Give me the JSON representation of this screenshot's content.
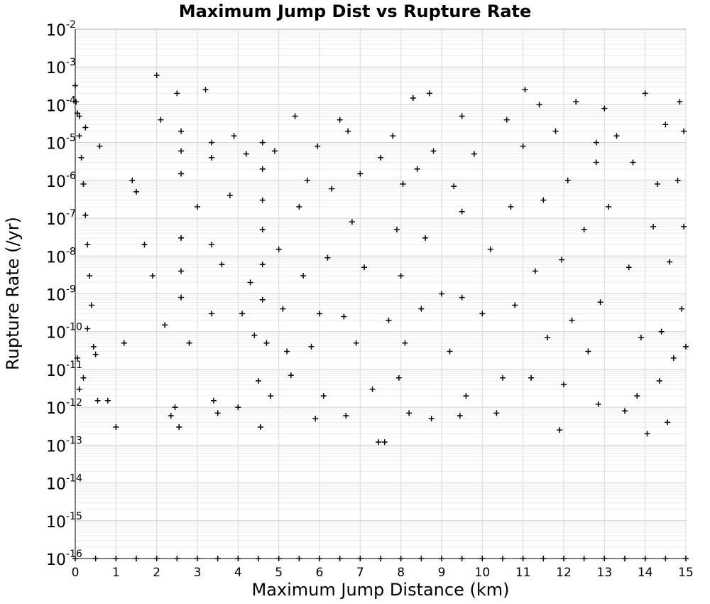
{
  "chart_data": {
    "type": "scatter",
    "title": "Maximum Jump Dist vs Rupture Rate",
    "xlabel": "Maximum Jump Distance (km)",
    "ylabel": "Rupture Rate (/yr)",
    "xlim": [
      0,
      15
    ],
    "ylim": [
      1e-16,
      0.01
    ],
    "yscale": "log",
    "grid": true,
    "marker": "+",
    "marker_color": "#000000",
    "x_ticks": [
      "0",
      "1",
      "2",
      "3",
      "4",
      "5",
      "6",
      "7",
      "8",
      "9",
      "10",
      "11",
      "12",
      "13",
      "14",
      "15"
    ],
    "y_ticks": [
      {
        "base": "10",
        "exp": "-2"
      },
      {
        "base": "10",
        "exp": "-3"
      },
      {
        "base": "10",
        "exp": "-4"
      },
      {
        "base": "10",
        "exp": "-5"
      },
      {
        "base": "10",
        "exp": "-6"
      },
      {
        "base": "10",
        "exp": "-7"
      },
      {
        "base": "10",
        "exp": "-8"
      },
      {
        "base": "10",
        "exp": "-9"
      },
      {
        "base": "10",
        "exp": "-10"
      },
      {
        "base": "10",
        "exp": "-11"
      },
      {
        "base": "10",
        "exp": "-12"
      },
      {
        "base": "10",
        "exp": "-13"
      },
      {
        "base": "10",
        "exp": "-14"
      },
      {
        "base": "10",
        "exp": "-15"
      },
      {
        "base": "10",
        "exp": "-16"
      }
    ],
    "series": [
      {
        "points": [
          [
            0.0,
            0.00032
          ],
          [
            0.02,
            0.00012
          ],
          [
            0.05,
            6e-05
          ],
          [
            0.1,
            1.5e-05
          ],
          [
            0.15,
            4e-06
          ],
          [
            0.2,
            8e-07
          ],
          [
            0.25,
            1.2e-07
          ],
          [
            0.3,
            2e-08
          ],
          [
            0.35,
            3e-09
          ],
          [
            0.4,
            5e-10
          ],
          [
            0.05,
            2e-11
          ],
          [
            0.1,
            3e-12
          ],
          [
            0.3,
            1.2e-10
          ],
          [
            0.45,
            4e-11
          ],
          [
            0.5,
            2.5e-11
          ],
          [
            0.2,
            6e-12
          ],
          [
            0.55,
            1.5e-12
          ],
          [
            0.1,
            5e-05
          ],
          [
            0.25,
            2.5e-05
          ],
          [
            0.6,
            8e-06
          ],
          [
            0.8,
            1.5e-12
          ],
          [
            1.0,
            3e-13
          ],
          [
            1.2,
            5e-11
          ],
          [
            1.4,
            1e-06
          ],
          [
            1.5,
            5e-07
          ],
          [
            1.7,
            2e-08
          ],
          [
            1.9,
            3e-09
          ],
          [
            2.0,
            0.0006
          ],
          [
            2.1,
            4e-05
          ],
          [
            2.2,
            1.5e-10
          ],
          [
            2.35,
            6e-13
          ],
          [
            2.45,
            1e-12
          ],
          [
            2.5,
            0.0002
          ],
          [
            2.55,
            3e-13
          ],
          [
            2.6,
            2e-05
          ],
          [
            2.6,
            6e-06
          ],
          [
            2.6,
            1.5e-06
          ],
          [
            2.6,
            3e-08
          ],
          [
            2.6,
            4e-09
          ],
          [
            2.6,
            8e-10
          ],
          [
            2.8,
            5e-11
          ],
          [
            3.0,
            2e-07
          ],
          [
            3.2,
            0.00025
          ],
          [
            3.35,
            1e-05
          ],
          [
            3.35,
            4e-06
          ],
          [
            3.35,
            2e-08
          ],
          [
            3.35,
            3e-10
          ],
          [
            3.4,
            1.5e-12
          ],
          [
            3.5,
            7e-13
          ],
          [
            3.6,
            6e-09
          ],
          [
            3.8,
            4e-07
          ],
          [
            3.9,
            1.5e-05
          ],
          [
            4.0,
            1e-12
          ],
          [
            4.1,
            3e-10
          ],
          [
            4.2,
            5e-06
          ],
          [
            4.3,
            2e-09
          ],
          [
            4.4,
            8e-11
          ],
          [
            4.5,
            5e-12
          ],
          [
            4.55,
            3e-13
          ],
          [
            4.6,
            1e-05
          ],
          [
            4.6,
            2e-06
          ],
          [
            4.6,
            3e-07
          ],
          [
            4.6,
            5e-08
          ],
          [
            4.6,
            6e-09
          ],
          [
            4.6,
            7e-10
          ],
          [
            4.7,
            5e-11
          ],
          [
            4.8,
            2e-12
          ],
          [
            4.9,
            6e-06
          ],
          [
            5.0,
            1.5e-08
          ],
          [
            5.1,
            4e-10
          ],
          [
            5.2,
            3e-11
          ],
          [
            5.3,
            7e-12
          ],
          [
            5.4,
            5e-05
          ],
          [
            5.5,
            2e-07
          ],
          [
            5.6,
            3e-09
          ],
          [
            5.7,
            1e-06
          ],
          [
            5.8,
            4e-11
          ],
          [
            5.9,
            5e-13
          ],
          [
            5.95,
            8e-06
          ],
          [
            6.0,
            3e-10
          ],
          [
            6.1,
            2e-12
          ],
          [
            6.2,
            9e-09
          ],
          [
            6.3,
            6e-07
          ],
          [
            6.5,
            4e-05
          ],
          [
            6.6,
            2.5e-10
          ],
          [
            6.65,
            6e-13
          ],
          [
            6.7,
            2e-05
          ],
          [
            6.8,
            8e-08
          ],
          [
            6.9,
            5e-11
          ],
          [
            7.0,
            1.5e-06
          ],
          [
            7.1,
            5e-09
          ],
          [
            7.3,
            3e-12
          ],
          [
            7.45,
            1.2e-13
          ],
          [
            7.5,
            4e-06
          ],
          [
            7.6,
            1.2e-13
          ],
          [
            7.7,
            2e-10
          ],
          [
            7.8,
            1.5e-05
          ],
          [
            7.9,
            5e-08
          ],
          [
            7.95,
            6e-12
          ],
          [
            8.0,
            3e-09
          ],
          [
            8.05,
            8e-07
          ],
          [
            8.1,
            5e-11
          ],
          [
            8.2,
            7e-13
          ],
          [
            8.3,
            0.00015
          ],
          [
            8.4,
            2e-06
          ],
          [
            8.5,
            4e-10
          ],
          [
            8.6,
            3e-08
          ],
          [
            8.7,
            0.0002
          ],
          [
            8.75,
            5e-13
          ],
          [
            8.8,
            6e-06
          ],
          [
            9.0,
            1e-09
          ],
          [
            9.2,
            3e-11
          ],
          [
            9.3,
            7e-07
          ],
          [
            9.45,
            6e-13
          ],
          [
            9.5,
            5e-05
          ],
          [
            9.5,
            1.5e-07
          ],
          [
            9.5,
            8e-10
          ],
          [
            9.6,
            2e-12
          ],
          [
            9.8,
            5e-06
          ],
          [
            10.0,
            3e-10
          ],
          [
            10.2,
            1.5e-08
          ],
          [
            10.35,
            7e-13
          ],
          [
            10.5,
            6e-12
          ],
          [
            10.6,
            4e-05
          ],
          [
            10.7,
            2e-07
          ],
          [
            10.8,
            5e-10
          ],
          [
            11.0,
            8e-06
          ],
          [
            11.05,
            0.00025
          ],
          [
            11.2,
            6e-12
          ],
          [
            11.3,
            4e-09
          ],
          [
            11.4,
            0.0001
          ],
          [
            11.5,
            3e-07
          ],
          [
            11.6,
            7e-11
          ],
          [
            11.8,
            2e-05
          ],
          [
            11.9,
            2.5e-13
          ],
          [
            11.95,
            8e-09
          ],
          [
            12.0,
            4e-12
          ],
          [
            12.1,
            1e-06
          ],
          [
            12.2,
            2e-10
          ],
          [
            12.3,
            0.00012
          ],
          [
            12.5,
            5e-08
          ],
          [
            12.6,
            3e-11
          ],
          [
            12.8,
            1e-05
          ],
          [
            12.8,
            3e-06
          ],
          [
            12.85,
            1.2e-12
          ],
          [
            12.9,
            6e-10
          ],
          [
            13.0,
            8e-05
          ],
          [
            13.1,
            2e-07
          ],
          [
            13.3,
            1.5e-05
          ],
          [
            13.5,
            8e-13
          ],
          [
            13.6,
            5e-09
          ],
          [
            13.7,
            3e-06
          ],
          [
            13.8,
            2e-12
          ],
          [
            13.9,
            7e-11
          ],
          [
            14.0,
            0.0002
          ],
          [
            14.05,
            2e-13
          ],
          [
            14.2,
            6e-08
          ],
          [
            14.3,
            8e-07
          ],
          [
            14.35,
            5e-12
          ],
          [
            14.4,
            1e-10
          ],
          [
            14.5,
            3e-05
          ],
          [
            14.55,
            4e-13
          ],
          [
            14.6,
            7e-09
          ],
          [
            14.7,
            2e-11
          ],
          [
            14.8,
            1e-06
          ],
          [
            14.85,
            0.00012
          ],
          [
            14.9,
            4e-10
          ],
          [
            14.95,
            2e-05
          ],
          [
            15.0,
            4e-11
          ],
          [
            14.95,
            6e-08
          ],
          [
            0.0,
            1e-16
          ],
          [
            0.5,
            1e-16
          ],
          [
            1.0,
            1e-16
          ],
          [
            1.5,
            1e-16
          ],
          [
            2.0,
            1e-16
          ],
          [
            2.5,
            1e-16
          ],
          [
            3.0,
            1e-16
          ],
          [
            3.5,
            1e-16
          ],
          [
            4.0,
            1e-16
          ],
          [
            4.5,
            1e-16
          ],
          [
            5.0,
            1e-16
          ],
          [
            5.5,
            1e-16
          ],
          [
            6.0,
            1e-16
          ],
          [
            6.5,
            1e-16
          ],
          [
            7.0,
            1e-16
          ],
          [
            7.5,
            1e-16
          ],
          [
            8.0,
            1e-16
          ],
          [
            8.5,
            1e-16
          ],
          [
            9.0,
            1e-16
          ],
          [
            9.5,
            1e-16
          ],
          [
            10.0,
            1e-16
          ],
          [
            10.5,
            1e-16
          ],
          [
            11.0,
            1e-16
          ],
          [
            11.5,
            1e-16
          ],
          [
            12.0,
            1e-16
          ],
          [
            12.5,
            1e-16
          ],
          [
            13.0,
            1e-16
          ],
          [
            13.5,
            1e-16
          ],
          [
            14.0,
            1e-16
          ],
          [
            14.5,
            1e-16
          ],
          [
            15.0,
            1e-16
          ]
        ]
      }
    ]
  }
}
